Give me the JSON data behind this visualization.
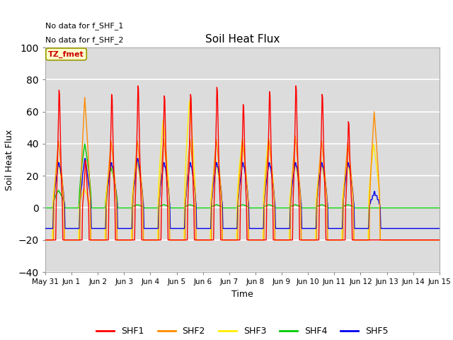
{
  "title": "Soil Heat Flux",
  "xlabel": "Time",
  "ylabel": "Soil Heat Flux",
  "ylim": [
    -40,
    100
  ],
  "yticks": [
    -40,
    -20,
    0,
    20,
    40,
    60,
    80,
    100
  ],
  "plot_bg_color": "#dcdcdc",
  "fig_bg_color": "#ffffff",
  "notes": [
    "No data for f_SHF_1",
    "No data for f_SHF_2"
  ],
  "tz_label": "TZ_fmet",
  "legend_entries": [
    "SHF1",
    "SHF2",
    "SHF3",
    "SHF4",
    "SHF5"
  ],
  "legend_colors": [
    "#ff0000",
    "#ff8c00",
    "#ffee00",
    "#00cc00",
    "#0000ee"
  ],
  "x_tick_labels": [
    "May 31",
    "Jun 1",
    "Jun 2",
    "Jun 3",
    "Jun 4",
    "Jun 5",
    "Jun 6",
    "Jun 7",
    "Jun 8",
    "Jun 9",
    "Jun 10",
    "Jun 11",
    "Jun 12",
    "Jun 13",
    "Jun 14",
    "Jun 15"
  ],
  "n_days": 15,
  "pts_per_day": 48,
  "shf1_peaks": [
    82,
    33,
    79,
    85,
    78,
    79,
    84,
    72,
    81,
    85,
    79,
    60,
    0,
    0,
    0
  ],
  "shf2_peaks": [
    42,
    69,
    42,
    42,
    43,
    43,
    43,
    43,
    43,
    45,
    42,
    41,
    60,
    0,
    0
  ],
  "shf3_peaks": [
    30,
    12,
    30,
    30,
    55,
    67,
    30,
    42,
    43,
    30,
    30,
    30,
    40,
    0,
    0
  ],
  "shf4_peaks": [
    11,
    40,
    25,
    2,
    2,
    2,
    2,
    2,
    2,
    2,
    2,
    2,
    0,
    0,
    0
  ],
  "shf5_peaks": [
    30,
    32,
    30,
    31,
    30,
    30,
    30,
    30,
    30,
    30,
    30,
    30,
    10,
    0,
    0
  ],
  "shf1_neg": -20,
  "shf2_neg": -20,
  "shf3_neg": -20,
  "shf4_neg": 0,
  "shf5_neg": -12
}
